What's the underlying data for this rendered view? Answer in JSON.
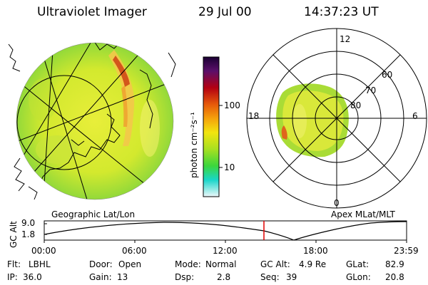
{
  "header": {
    "instrument": "Ultraviolet Imager",
    "date": "29 Jul 00",
    "time": "14:37:23 UT"
  },
  "colorbar": {
    "unit_label": "photon cm⁻²s⁻¹",
    "tick_labels": [
      "100",
      "10"
    ],
    "colors": [
      "#1a0033",
      "#5b0f6a",
      "#b30012",
      "#e65a0a",
      "#f5a20b",
      "#f2e40f",
      "#a8e020",
      "#3bd63c",
      "#19d6c9",
      "#c8eef7"
    ]
  },
  "geo_panel": {
    "caption": "Geographic Lat/Lon"
  },
  "polar_panel": {
    "caption": "Apex MLat/MLT",
    "mlt_labels": [
      "12",
      "18",
      "6",
      "0"
    ],
    "mlat_labels": [
      "60",
      "70",
      "80"
    ]
  },
  "altitude_plot": {
    "ylabel": "GC Alt",
    "y_ticks": [
      "9.0",
      "1.8"
    ],
    "x_ticks": [
      "00:00",
      "06:00",
      "12:00",
      "18:00",
      "23:59"
    ],
    "current_time_color": "#e00000"
  },
  "info": {
    "flt_label": "Flt:",
    "flt_value": "LBHL",
    "ip_label": "IP:",
    "ip_value": "36.0",
    "door_label": "Door:",
    "door_value": "Open",
    "gain_label": "Gain:",
    "gain_value": "13",
    "mode_label": "Mode:",
    "mode_value": "Normal",
    "dsp_label": "Dsp:",
    "dsp_value": "2.8",
    "gcalt_label": "GC Alt:",
    "gcalt_value": "4.9 Re",
    "seq_label": "Seq:",
    "seq_value": "39",
    "glat_label": "GLat:",
    "glat_value": "82.9",
    "glon_label": "GLon:",
    "glon_value": "20.8"
  }
}
